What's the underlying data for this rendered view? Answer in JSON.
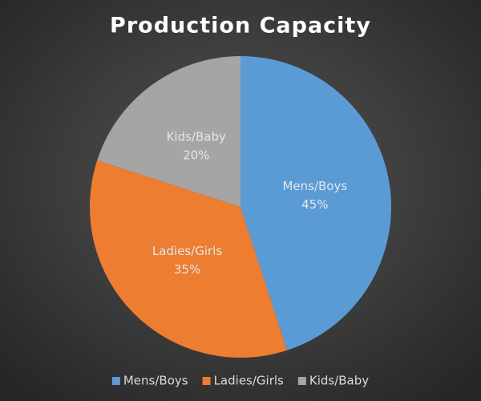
{
  "chart_data": {
    "type": "pie",
    "title": "Production Capacity",
    "categories": [
      "Mens/Boys",
      "Ladies/Girls",
      "Kids/Baby"
    ],
    "values": [
      45,
      35,
      20
    ],
    "value_labels": [
      "45%",
      "35%",
      "20%"
    ],
    "colors": [
      "#5b9bd5",
      "#ed7d31",
      "#a5a5a5"
    ],
    "legend": "bottom"
  }
}
